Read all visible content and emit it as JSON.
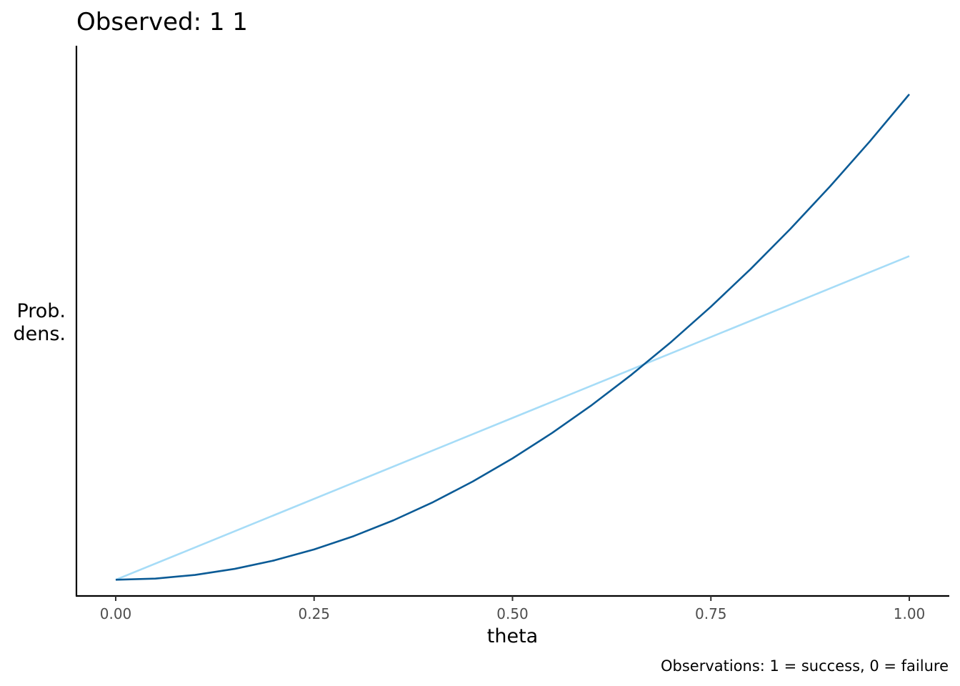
{
  "chart_data": {
    "type": "line",
    "title": "Observed:  1 1",
    "xlabel": "theta",
    "ylabel_lines": [
      "Prob.",
      "dens."
    ],
    "caption": "Observations: 1 = success, 0 = failure",
    "xlim": [
      0,
      1
    ],
    "ylim": [
      -0.1,
      3.3
    ],
    "x_ticks": [
      0,
      0.25,
      0.5,
      0.75,
      1
    ],
    "x_tick_labels": [
      "0.00",
      "0.25",
      "0.50",
      "0.75",
      "1.00"
    ],
    "grid": false,
    "series": [
      {
        "color": "#a6dcf7",
        "x": [
          0,
          0.1,
          0.2,
          0.3,
          0.4,
          0.5,
          0.6,
          0.7,
          0.8,
          0.9,
          1.0
        ],
        "y": [
          0,
          0.2,
          0.4,
          0.6,
          0.8,
          1.0,
          1.2,
          1.4,
          1.6,
          1.8,
          2.0
        ]
      },
      {
        "color": "#0b5b96",
        "x": [
          0,
          0.05,
          0.1,
          0.15,
          0.2,
          0.25,
          0.3,
          0.35,
          0.4,
          0.45,
          0.5,
          0.55,
          0.6,
          0.65,
          0.7,
          0.75,
          0.8,
          0.85,
          0.9,
          0.95,
          1.0
        ],
        "y": [
          0,
          0.0075,
          0.03,
          0.0675,
          0.12,
          0.1875,
          0.27,
          0.3675,
          0.48,
          0.6075,
          0.75,
          0.9075,
          1.08,
          1.2675,
          1.47,
          1.6875,
          1.92,
          2.1675,
          2.43,
          2.7075,
          3.0
        ]
      }
    ]
  }
}
